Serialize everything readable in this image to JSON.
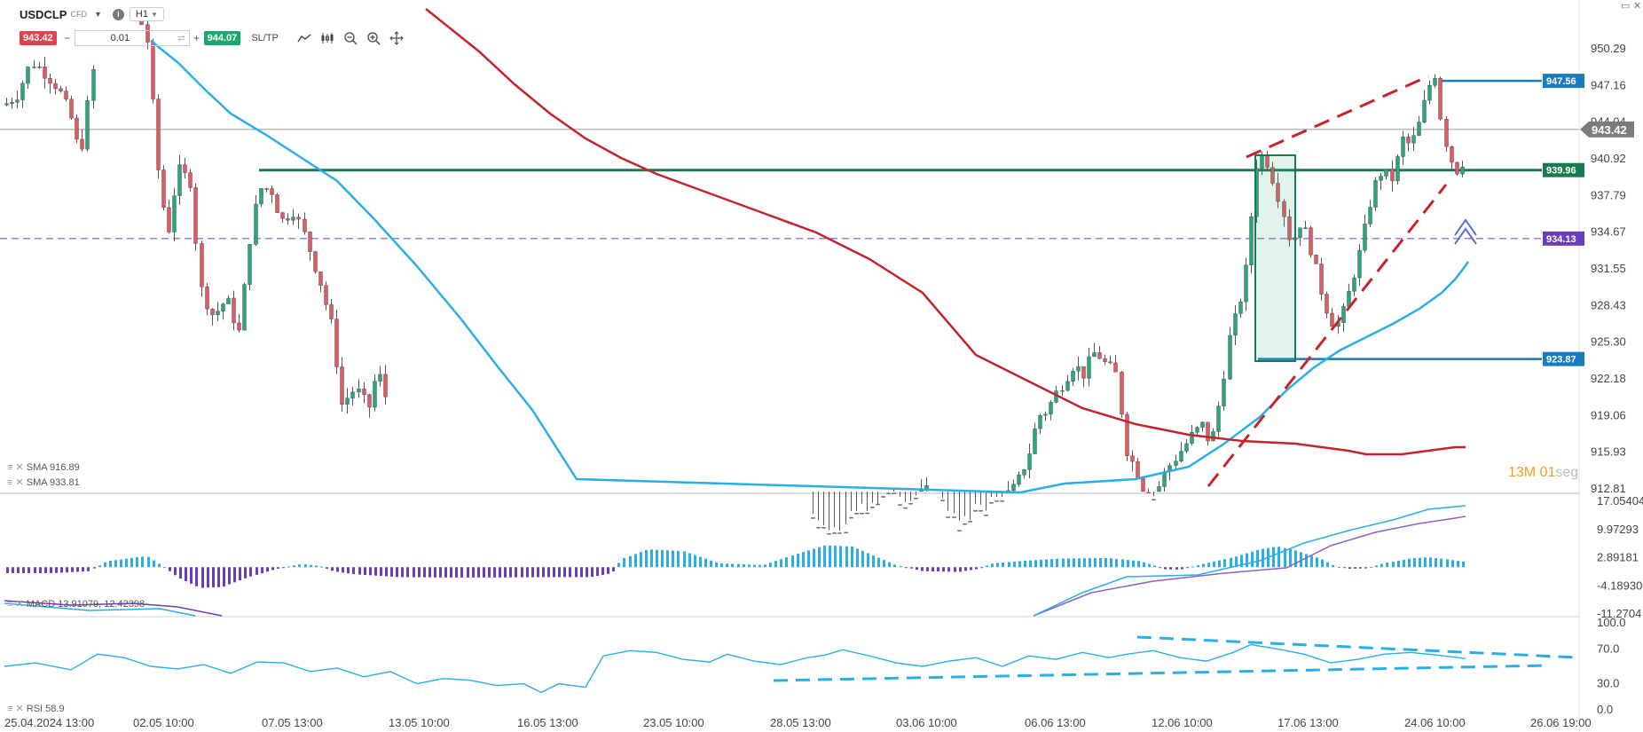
{
  "header": {
    "symbol": "USDCLP",
    "instrument_type": "CFD",
    "timeframe": "H1",
    "sell_price": "943.42",
    "buy_price": "944.07",
    "quantity": "0.01",
    "sltp_label": "SL/TP"
  },
  "indicators": {
    "sma1_label": "SMA 916.89",
    "sma2_label": "SMA 933.81",
    "macd_label": "MACD 13.91079, 12.42398",
    "rsi_label": "RSI 58.9"
  },
  "timer": {
    "minutes": "13M",
    "seconds": "01",
    "seconds_unit": "seg"
  },
  "colors": {
    "bull": "#2aa77a",
    "bear": "#e05a63",
    "sma_fast": "#29aee8",
    "sma_slow": "#c4242b",
    "support_green": "#1a7a4f",
    "level_blue": "#1b7bc0",
    "dashed_purple": "#6a3dbd",
    "macd_pos": "#29aee8",
    "macd_neg": "#6a3dbd"
  },
  "chart_data": [
    {
      "type": "candlestick",
      "title": "USDCLP H1",
      "x_tick_labels": [
        "25.04.2024 13:00",
        "02.05 10:00",
        "07.05 13:00",
        "13.05 10:00",
        "16.05 13:00",
        "23.05 10:00",
        "28.05 13:00",
        "03.06 10:00",
        "06.06 13:00",
        "12.06 10:00",
        "17.06 13:00",
        "24.06 10:00",
        "26.06 19:00"
      ],
      "y_ticks": [
        950.29,
        947.16,
        944.04,
        940.92,
        937.79,
        934.67,
        931.55,
        928.43,
        925.3,
        922.18,
        919.06,
        915.93,
        912.81
      ],
      "ylim": [
        912.81,
        951.5
      ],
      "current_price": 943.42,
      "price_levels": [
        {
          "label": "947.56",
          "value": 947.56,
          "style": "solid-blue"
        },
        {
          "label": "939.96",
          "value": 939.96,
          "style": "solid-green"
        },
        {
          "label": "934.13",
          "value": 934.13,
          "style": "dashed-purple"
        },
        {
          "label": "923.87",
          "value": 923.87,
          "style": "solid-blue"
        }
      ],
      "series": [
        {
          "name": "SMA 916.89",
          "color": "#c4242b"
        },
        {
          "name": "SMA 933.81",
          "color": "#29aee8"
        }
      ]
    },
    {
      "type": "bar",
      "title": "MACD",
      "y_ticks": [
        17.05404,
        9.97293,
        2.89181,
        -4.1893,
        -11.2704
      ],
      "y_tick_labels": [
        "17.05404",
        "9.97293",
        "2.89181",
        "-4.18930",
        "-11.2704"
      ],
      "ylim": [
        -11.2704,
        17.05404
      ],
      "values": {
        "macd": 13.91079,
        "signal": 12.42398
      }
    },
    {
      "type": "line",
      "title": "RSI",
      "y_ticks": [
        100.0,
        70.0,
        30.0,
        0.0
      ],
      "y_tick_labels": [
        "100.0",
        "70.0",
        "30.0",
        "0.0"
      ],
      "ylim": [
        0,
        100
      ],
      "value": 58.9
    }
  ]
}
